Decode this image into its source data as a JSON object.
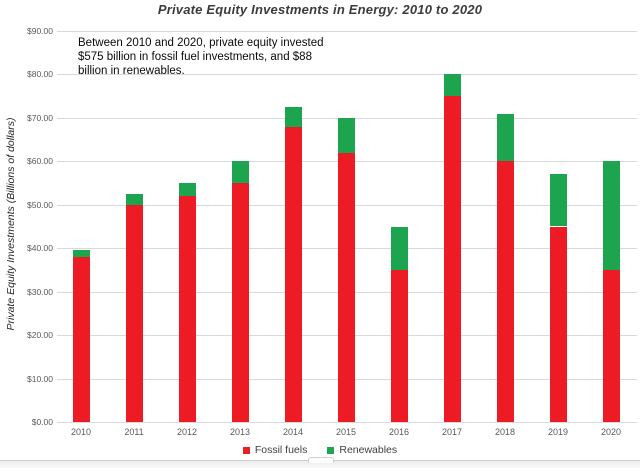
{
  "chart_data": {
    "type": "bar",
    "stacked": true,
    "title": "Private Equity Investments in Energy: 2010 to 2020",
    "xlabel": "",
    "ylabel": "Private Equity Investments (Billions of dollars)",
    "categories": [
      "2010",
      "2011",
      "2012",
      "2013",
      "2014",
      "2015",
      "2016",
      "2017",
      "2018",
      "2019",
      "2020"
    ],
    "series": [
      {
        "name": "Fossil fuels",
        "color": "#ED1C24",
        "values": [
          38,
          50,
          52,
          55,
          68,
          62,
          35,
          75,
          60,
          45,
          35
        ]
      },
      {
        "name": "Renewables",
        "color": "#1CA44F",
        "values": [
          1.5,
          2.5,
          3,
          5,
          4.5,
          8,
          10,
          5,
          11,
          12,
          25
        ]
      }
    ],
    "ylim": [
      0,
      90
    ],
    "ytick_step": 10,
    "ytick_labels": [
      "$0.00",
      "$10.00",
      "$20.00",
      "$30.00",
      "$40.00",
      "$50.00",
      "$60.00",
      "$70.00",
      "$80.00",
      "$90.00"
    ],
    "grid": true,
    "gridline_color": "#d9d9d9",
    "legend_position": "bottom"
  },
  "annotation": {
    "lines": [
      "Between 2010 and 2020, private equity invested",
      "$575 billion in fossil fuel investments, and $88",
      "billion in renewables."
    ]
  },
  "legend": {
    "items": [
      {
        "label": "Fossil fuels",
        "color": "#ED1C24"
      },
      {
        "label": "Renewables",
        "color": "#1CA44F"
      }
    ]
  }
}
